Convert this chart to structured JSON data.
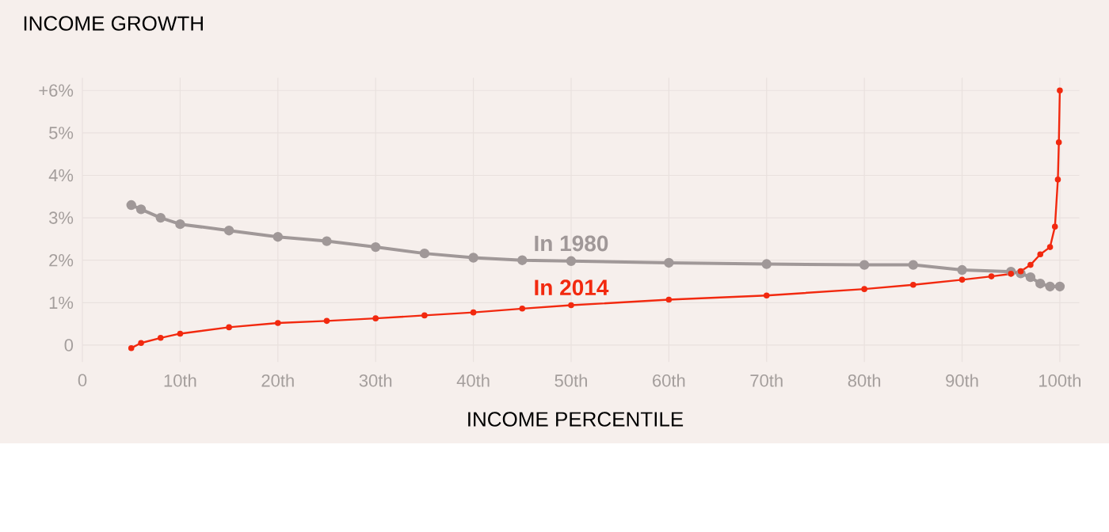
{
  "chart_data": {
    "type": "line",
    "title": "INCOME GROWTH",
    "xlabel": "INCOME PERCENTILE",
    "xlim": [
      0,
      102
    ],
    "ylim": [
      -0.4,
      6.3
    ],
    "xticks": [
      0,
      {
        "value": 10,
        "label": "10th"
      },
      {
        "value": 20,
        "label": "20th"
      },
      {
        "value": 30,
        "label": "30th"
      },
      {
        "value": 40,
        "label": "40th"
      },
      {
        "value": 50,
        "label": "50th"
      },
      {
        "value": 60,
        "label": "60th"
      },
      {
        "value": 70,
        "label": "70th"
      },
      {
        "value": 80,
        "label": "80th"
      },
      {
        "value": 90,
        "label": "90th"
      },
      {
        "value": 100,
        "label": "100th"
      }
    ],
    "yticks": [
      0,
      {
        "value": 1,
        "label": "1%"
      },
      {
        "value": 2,
        "label": "2%"
      },
      {
        "value": 3,
        "label": "3%"
      },
      {
        "value": 4,
        "label": "4%"
      },
      {
        "value": 5,
        "label": "5%"
      },
      {
        "value": 6,
        "label": "+6%"
      }
    ],
    "grid": true,
    "legend": false,
    "marker": "circle",
    "line_style": "solid",
    "series": [
      {
        "name": "In 1980",
        "color": "#a09898",
        "x": [
          5,
          6,
          8,
          10,
          15,
          20,
          25,
          30,
          35,
          40,
          45,
          50,
          60,
          70,
          80,
          85,
          90,
          95,
          96,
          97,
          98,
          99,
          100
        ],
        "values": [
          3.3,
          3.2,
          3.0,
          2.85,
          2.7,
          2.55,
          2.45,
          2.31,
          2.16,
          2.06,
          2.0,
          1.98,
          1.94,
          1.91,
          1.89,
          1.89,
          1.77,
          1.73,
          1.69,
          1.6,
          1.45,
          1.38,
          1.38
        ]
      },
      {
        "name": "In 2014",
        "color": "#f2290f",
        "x": [
          5,
          6,
          8,
          10,
          15,
          20,
          25,
          30,
          35,
          40,
          45,
          50,
          60,
          70,
          80,
          85,
          90,
          93,
          95,
          96,
          97,
          98,
          99,
          99.5,
          99.8,
          99.9,
          100
        ],
        "values": [
          -0.07,
          0.05,
          0.17,
          0.27,
          0.42,
          0.52,
          0.57,
          0.63,
          0.7,
          0.77,
          0.86,
          0.94,
          1.07,
          1.17,
          1.32,
          1.42,
          1.54,
          1.62,
          1.68,
          1.74,
          1.89,
          2.14,
          2.31,
          2.79,
          3.9,
          4.78,
          6.0
        ]
      }
    ]
  }
}
